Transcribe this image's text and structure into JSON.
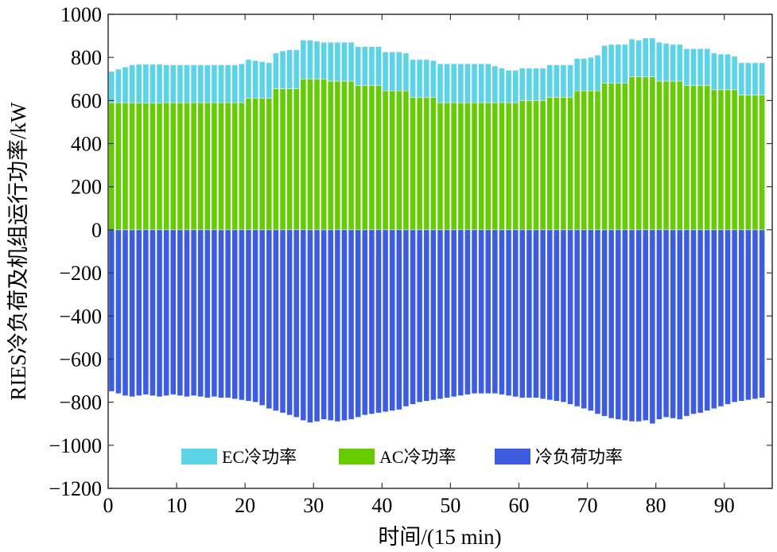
{
  "chart_data": {
    "type": "bar",
    "stacked": true,
    "ylabel": "RIES冷负荷及机组运行功率/kW",
    "xlabel": "时间/(15 min)",
    "xlim": [
      0,
      97
    ],
    "ylim": [
      -1200,
      1000
    ],
    "x_ticks": [
      0,
      10,
      20,
      30,
      40,
      50,
      60,
      70,
      80,
      90
    ],
    "x_tick_labels": [
      "0",
      "10",
      "20",
      "30",
      "40",
      "50",
      "60",
      "70",
      "80",
      "90"
    ],
    "y_ticks": [
      -1200,
      -1000,
      -800,
      -600,
      -400,
      -200,
      0,
      200,
      400,
      600,
      800,
      1000
    ],
    "y_tick_labels": [
      "−1200",
      "−1000",
      "−800",
      "−600",
      "−400",
      "−200",
      "0",
      "200",
      "400",
      "600",
      "800",
      "1000"
    ],
    "legend_position": "bottom-inside",
    "x": [
      1,
      2,
      3,
      4,
      5,
      6,
      7,
      8,
      9,
      10,
      11,
      12,
      13,
      14,
      15,
      16,
      17,
      18,
      19,
      20,
      21,
      22,
      23,
      24,
      25,
      26,
      27,
      28,
      29,
      30,
      31,
      32,
      33,
      34,
      35,
      36,
      37,
      38,
      39,
      40,
      41,
      42,
      43,
      44,
      45,
      46,
      47,
      48,
      49,
      50,
      51,
      52,
      53,
      54,
      55,
      56,
      57,
      58,
      59,
      60,
      61,
      62,
      63,
      64,
      65,
      66,
      67,
      68,
      69,
      70,
      71,
      72,
      73,
      74,
      75,
      76,
      77,
      78,
      79,
      80,
      81,
      82,
      83,
      84,
      85,
      86,
      87,
      88,
      89,
      90,
      91,
      92,
      93,
      94,
      95,
      96
    ],
    "series": [
      {
        "name": "AC冷功率",
        "color": "#66cc00",
        "values": [
          590,
          590,
          590,
          590,
          588,
          588,
          588,
          588,
          590,
          590,
          590,
          590,
          590,
          590,
          590,
          590,
          590,
          590,
          590,
          590,
          610,
          610,
          610,
          610,
          655,
          655,
          655,
          655,
          700,
          700,
          700,
          700,
          690,
          690,
          690,
          690,
          670,
          670,
          670,
          670,
          645,
          645,
          645,
          645,
          615,
          615,
          615,
          615,
          590,
          590,
          590,
          590,
          590,
          590,
          590,
          590,
          590,
          590,
          590,
          590,
          600,
          600,
          600,
          600,
          615,
          615,
          615,
          615,
          645,
          645,
          645,
          645,
          680,
          680,
          680,
          680,
          710,
          710,
          710,
          710,
          690,
          690,
          690,
          690,
          670,
          670,
          670,
          670,
          650,
          650,
          650,
          650,
          625,
          625,
          625,
          625
        ]
      },
      {
        "name": "EC冷功率",
        "color": "#5ad4e6",
        "values": [
          145,
          155,
          165,
          175,
          180,
          180,
          180,
          180,
          175,
          175,
          175,
          175,
          175,
          175,
          175,
          175,
          175,
          175,
          175,
          180,
          180,
          175,
          170,
          165,
          165,
          175,
          180,
          180,
          180,
          180,
          175,
          170,
          180,
          180,
          180,
          180,
          180,
          180,
          180,
          180,
          180,
          180,
          180,
          175,
          175,
          175,
          175,
          170,
          180,
          180,
          180,
          180,
          180,
          180,
          180,
          180,
          170,
          160,
          150,
          150,
          150,
          150,
          150,
          150,
          150,
          150,
          150,
          150,
          150,
          150,
          155,
          165,
          175,
          180,
          180,
          180,
          175,
          170,
          180,
          180,
          180,
          175,
          170,
          170,
          170,
          170,
          170,
          170,
          170,
          165,
          165,
          155,
          150,
          150,
          150,
          150
        ]
      },
      {
        "name": "冷负荷功率",
        "color": "#3d5ce0",
        "values": [
          -750,
          -760,
          -770,
          -775,
          -770,
          -765,
          -770,
          -775,
          -770,
          -765,
          -770,
          -775,
          -770,
          -775,
          -780,
          -775,
          -780,
          -780,
          -785,
          -790,
          -795,
          -800,
          -815,
          -830,
          -840,
          -850,
          -860,
          -870,
          -885,
          -895,
          -890,
          -880,
          -885,
          -890,
          -885,
          -880,
          -870,
          -860,
          -855,
          -850,
          -845,
          -840,
          -835,
          -820,
          -810,
          -800,
          -795,
          -790,
          -785,
          -780,
          -775,
          -770,
          -765,
          -760,
          -760,
          -760,
          -760,
          -765,
          -770,
          -775,
          -780,
          -780,
          -780,
          -785,
          -790,
          -795,
          -800,
          -810,
          -820,
          -830,
          -840,
          -855,
          -865,
          -875,
          -880,
          -885,
          -890,
          -890,
          -885,
          -900,
          -880,
          -870,
          -875,
          -880,
          -865,
          -855,
          -850,
          -840,
          -830,
          -820,
          -810,
          -800,
          -795,
          -790,
          -785,
          -780
        ]
      }
    ]
  }
}
